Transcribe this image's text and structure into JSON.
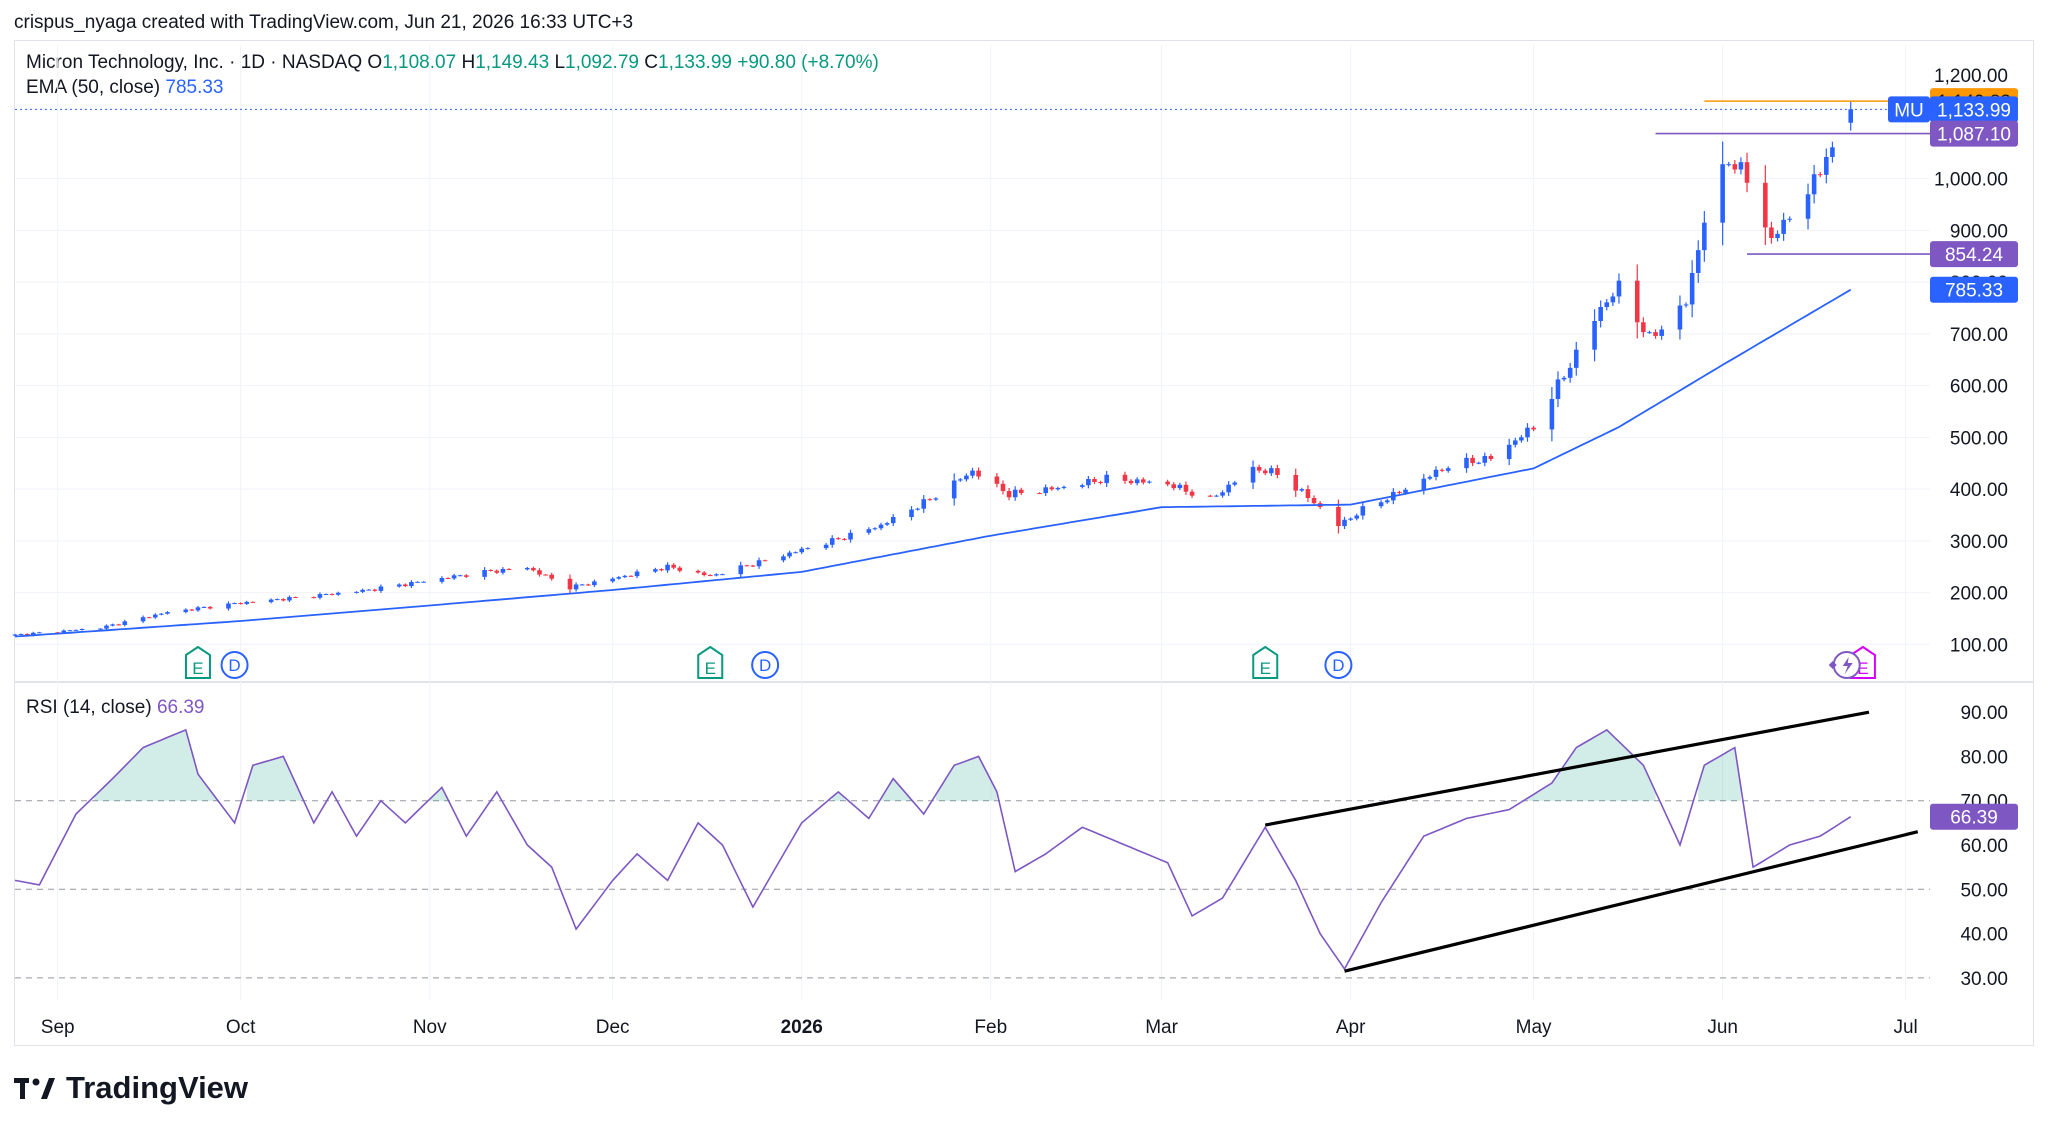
{
  "caption": "crispus_nyaga created with TradingView.com, Jun 21, 2026 16:33 UTC+3",
  "brand": "TradingView",
  "legend": {
    "symbol": "Micron Technology, Inc. · 1D · NASDAQ",
    "o_label": "O",
    "o": "1,108.07",
    "h_label": "H",
    "h": "1,149.43",
    "l_label": "L",
    "l": "1,092.79",
    "c_label": "C",
    "c": "1,133.99",
    "change": "+90.80 (+8.70%)",
    "ema_label": "EMA (50, close)",
    "ema_value": "785.33",
    "rsi_label": "RSI (14, close)",
    "rsi_value": "66.39"
  },
  "colors": {
    "up": "#2962ff",
    "down": "#f23645",
    "ema": "#2962ff",
    "rsi": "#7e57c2",
    "level": "#7e57c2",
    "high": "#ff9800",
    "text": "#131722",
    "grid": "#f0f3fa"
  },
  "price_tags": {
    "top_partial": "1,200.00",
    "high": "1,149.83",
    "ticker": "MU",
    "last": "1,133.99",
    "resistance": "1,087.10",
    "support": "854.24",
    "ema": "785.33",
    "rsi": "66.39"
  },
  "events": [
    {
      "type": "E",
      "date": "2025-09-24"
    },
    {
      "type": "D",
      "date": "2025-09-30"
    },
    {
      "type": "E",
      "date": "2025-12-17"
    },
    {
      "type": "D",
      "date": "2025-12-26"
    },
    {
      "type": "E",
      "date": "2026-03-18"
    },
    {
      "type": "D",
      "date": "2026-03-30"
    },
    {
      "type": "E",
      "date": "2026-06-24"
    }
  ],
  "chart_data": [
    {
      "type": "candlestick",
      "title": "Micron Technology, Inc. · 1D · NASDAQ",
      "x_range": [
        "2025-08-25",
        "2026-07-05"
      ],
      "ylim": [
        60,
        1210
      ],
      "y_ticks": [
        "100.00",
        "200.00",
        "300.00",
        "400.00",
        "500.00",
        "600.00",
        "700.00",
        "800.00",
        "900.00",
        "1,000.00"
      ],
      "x_ticks": [
        {
          "label": "Sep",
          "date": "2025-09-01"
        },
        {
          "label": "Oct",
          "date": "2025-10-01"
        },
        {
          "label": "Nov",
          "date": "2025-11-01"
        },
        {
          "label": "Dec",
          "date": "2025-12-01"
        },
        {
          "label": "2026",
          "date": "2026-01-01"
        },
        {
          "label": "Feb",
          "date": "2026-02-01"
        },
        {
          "label": "Mar",
          "date": "2026-03-01"
        },
        {
          "label": "Apr",
          "date": "2026-04-01"
        },
        {
          "label": "May",
          "date": "2026-05-01"
        },
        {
          "label": "Jun",
          "date": "2026-06-01"
        },
        {
          "label": "Jul",
          "date": "2026-07-01"
        }
      ],
      "close_anchors": [
        [
          "2025-08-25",
          118
        ],
        [
          "2025-09-08",
          132
        ],
        [
          "2025-09-19",
          162
        ],
        [
          "2025-10-01",
          180
        ],
        [
          "2025-10-10",
          190
        ],
        [
          "2025-10-22",
          205
        ],
        [
          "2025-10-31",
          222
        ],
        [
          "2025-11-10",
          240
        ],
        [
          "2025-11-17",
          248
        ],
        [
          "2025-11-24",
          210
        ],
        [
          "2025-12-03",
          232
        ],
        [
          "2025-12-10",
          250
        ],
        [
          "2025-12-17",
          232
        ],
        [
          "2025-12-26",
          262
        ],
        [
          "2026-01-06",
          300
        ],
        [
          "2026-01-14",
          330
        ],
        [
          "2026-01-22",
          380
        ],
        [
          "2026-01-29",
          435
        ],
        [
          "2026-02-04",
          390
        ],
        [
          "2026-02-12",
          402
        ],
        [
          "2026-02-20",
          420
        ],
        [
          "2026-03-02",
          410
        ],
        [
          "2026-03-09",
          380
        ],
        [
          "2026-03-16",
          440
        ],
        [
          "2026-03-20",
          430
        ],
        [
          "2026-03-26",
          375
        ],
        [
          "2026-03-30",
          330
        ],
        [
          "2026-04-03",
          360
        ],
        [
          "2026-04-10",
          400
        ],
        [
          "2026-04-17",
          445
        ],
        [
          "2026-04-24",
          460
        ],
        [
          "2026-05-01",
          520
        ],
        [
          "2026-05-07",
          640
        ],
        [
          "2026-05-12",
          750
        ],
        [
          "2026-05-15",
          790
        ],
        [
          "2026-05-20",
          690
        ],
        [
          "2026-05-26",
          760
        ],
        [
          "2026-05-29",
          920
        ],
        [
          "2026-06-02",
          1040
        ],
        [
          "2026-06-05",
          1000
        ],
        [
          "2026-06-09",
          880
        ],
        [
          "2026-06-12",
          930
        ],
        [
          "2026-06-16",
          990
        ],
        [
          "2026-06-18",
          1050
        ],
        [
          "2026-06-19",
          1043
        ],
        [
          "2026-06-22",
          1133.99
        ]
      ],
      "last_bar": {
        "date": "2026-06-22",
        "open": 1108.07,
        "high": 1149.43,
        "low": 1092.79,
        "close": 1133.99
      },
      "ema": {
        "name": "EMA (50, close)",
        "anchors": [
          [
            "2025-08-25",
            115
          ],
          [
            "2025-10-01",
            145
          ],
          [
            "2025-11-01",
            175
          ],
          [
            "2025-12-01",
            205
          ],
          [
            "2026-01-01",
            240
          ],
          [
            "2026-02-01",
            310
          ],
          [
            "2026-03-01",
            365
          ],
          [
            "2026-04-01",
            370
          ],
          [
            "2026-05-01",
            440
          ],
          [
            "2026-05-15",
            520
          ],
          [
            "2026-06-01",
            640
          ],
          [
            "2026-06-22",
            785.33
          ]
        ]
      },
      "levels": [
        {
          "value": 1149.83,
          "from": "2026-05-29",
          "label": "1,149.83"
        },
        {
          "value": 1087.1,
          "from": "2026-05-21",
          "label": "1,087.10"
        },
        {
          "value": 854.24,
          "from": "2026-06-05",
          "label": "854.24"
        }
      ]
    },
    {
      "type": "line",
      "title": "RSI (14, close)",
      "ylim": [
        25,
        95
      ],
      "y_ticks": [
        "30.00",
        "40.00",
        "50.00",
        "60.00",
        "70.00",
        "80.00",
        "90.00"
      ],
      "levels": [
        30,
        50,
        70
      ],
      "anchors": [
        [
          "2025-08-25",
          52
        ],
        [
          "2025-08-29",
          51
        ],
        [
          "2025-09-04",
          67
        ],
        [
          "2025-09-10",
          75
        ],
        [
          "2025-09-15",
          82
        ],
        [
          "2025-09-22",
          86
        ],
        [
          "2025-09-24",
          76
        ],
        [
          "2025-09-30",
          65
        ],
        [
          "2025-10-03",
          78
        ],
        [
          "2025-10-08",
          80
        ],
        [
          "2025-10-13",
          65
        ],
        [
          "2025-10-16",
          72
        ],
        [
          "2025-10-20",
          62
        ],
        [
          "2025-10-24",
          70
        ],
        [
          "2025-10-28",
          65
        ],
        [
          "2025-11-03",
          73
        ],
        [
          "2025-11-07",
          62
        ],
        [
          "2025-11-12",
          72
        ],
        [
          "2025-11-17",
          60
        ],
        [
          "2025-11-21",
          55
        ],
        [
          "2025-11-25",
          41
        ],
        [
          "2025-12-01",
          52
        ],
        [
          "2025-12-05",
          58
        ],
        [
          "2025-12-10",
          52
        ],
        [
          "2025-12-15",
          65
        ],
        [
          "2025-12-19",
          60
        ],
        [
          "2025-12-24",
          46
        ],
        [
          "2026-01-01",
          65
        ],
        [
          "2026-01-07",
          72
        ],
        [
          "2026-01-12",
          66
        ],
        [
          "2026-01-16",
          75
        ],
        [
          "2026-01-21",
          67
        ],
        [
          "2026-01-26",
          78
        ],
        [
          "2026-01-30",
          80
        ],
        [
          "2026-02-02",
          72
        ],
        [
          "2026-02-05",
          54
        ],
        [
          "2026-02-10",
          58
        ],
        [
          "2026-02-16",
          64
        ],
        [
          "2026-02-23",
          60
        ],
        [
          "2026-03-02",
          56
        ],
        [
          "2026-03-06",
          44
        ],
        [
          "2026-03-11",
          48
        ],
        [
          "2026-03-18",
          64
        ],
        [
          "2026-03-23",
          52
        ],
        [
          "2026-03-27",
          40
        ],
        [
          "2026-03-31",
          32
        ],
        [
          "2026-04-06",
          47
        ],
        [
          "2026-04-13",
          62
        ],
        [
          "2026-04-20",
          66
        ],
        [
          "2026-04-27",
          68
        ],
        [
          "2026-05-04",
          74
        ],
        [
          "2026-05-08",
          82
        ],
        [
          "2026-05-13",
          86
        ],
        [
          "2026-05-19",
          78
        ],
        [
          "2026-05-25",
          60
        ],
        [
          "2026-05-29",
          78
        ],
        [
          "2026-06-03",
          82
        ],
        [
          "2026-06-06",
          55
        ],
        [
          "2026-06-12",
          60
        ],
        [
          "2026-06-17",
          62
        ],
        [
          "2026-06-22",
          66.39
        ]
      ],
      "trendlines": [
        {
          "from": [
            "2026-03-18",
            64.5
          ],
          "to": [
            "2026-06-25",
            90
          ]
        },
        {
          "from": [
            "2026-03-31",
            31.5
          ],
          "to": [
            "2026-07-03",
            63
          ]
        }
      ]
    }
  ]
}
